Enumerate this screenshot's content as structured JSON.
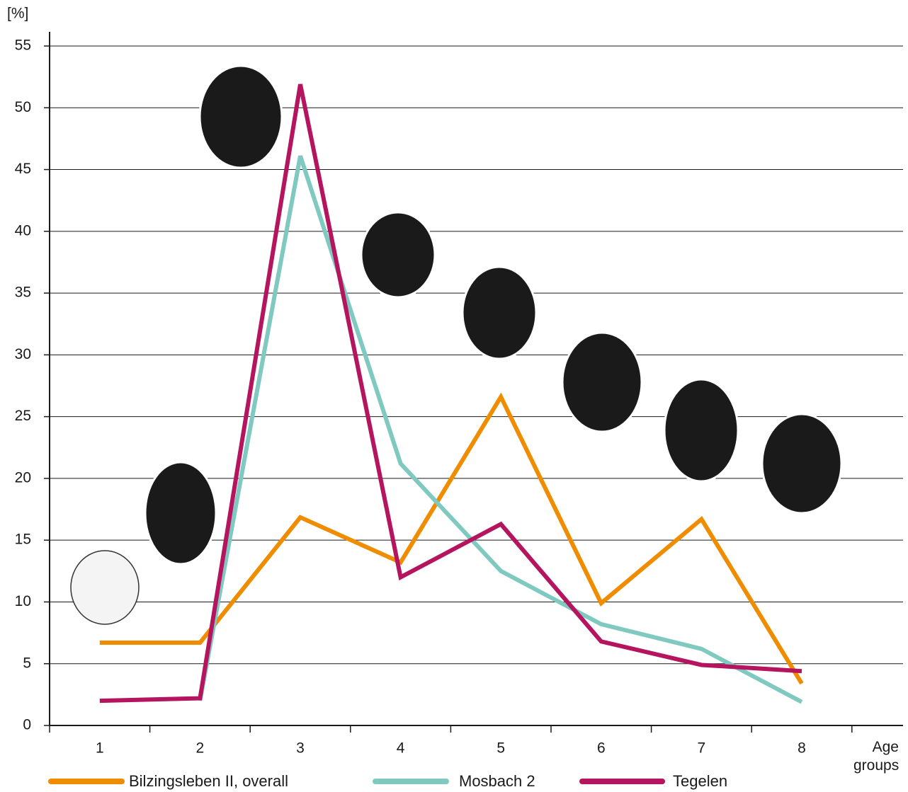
{
  "chart_data": {
    "type": "line",
    "y_label": "[%]",
    "x_label": "Age groups",
    "categories": [
      "1",
      "2",
      "3",
      "4",
      "5",
      "6",
      "7",
      "8"
    ],
    "series": [
      {
        "name": "Bilzingsleben II, overall",
        "color": "#f08c00",
        "values": [
          6.7,
          6.7,
          16.85,
          13.2,
          26.6,
          9.9,
          16.7,
          3.4
        ]
      },
      {
        "name": "Mosbach 2",
        "color": "#80c9c1",
        "values": [
          null,
          2.0,
          46.1,
          21.2,
          12.5,
          8.2,
          6.2,
          1.9
        ]
      },
      {
        "name": "Tegelen",
        "color": "#b5145e",
        "values": [
          2.0,
          2.2,
          51.9,
          12.0,
          16.3,
          6.8,
          4.9,
          4.4
        ]
      }
    ],
    "ylim": [
      0,
      55
    ],
    "yticks": [
      0,
      5,
      10,
      15,
      20,
      25,
      30,
      35,
      40,
      45,
      50,
      55
    ],
    "grid": true
  }
}
